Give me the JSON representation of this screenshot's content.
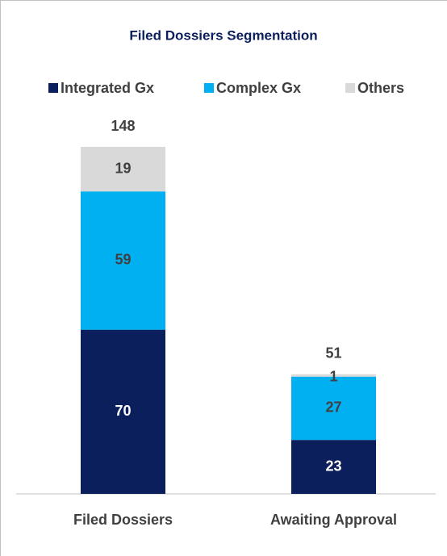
{
  "chart_data": {
    "type": "stacked_bar",
    "title": "Filed Dossiers Segmentation",
    "categories": [
      "Filed Dossiers",
      "Awaiting Approval"
    ],
    "series": [
      {
        "name": "Integrated Gx",
        "color": "#0b1f5c",
        "values": [
          70,
          23
        ]
      },
      {
        "name": "Complex Gx",
        "color": "#00b0f0",
        "values": [
          59,
          27
        ]
      },
      {
        "name": "Others",
        "color": "#d9d9d9",
        "values": [
          19,
          1
        ]
      }
    ],
    "totals": [
      148,
      51
    ],
    "legend": "top"
  }
}
